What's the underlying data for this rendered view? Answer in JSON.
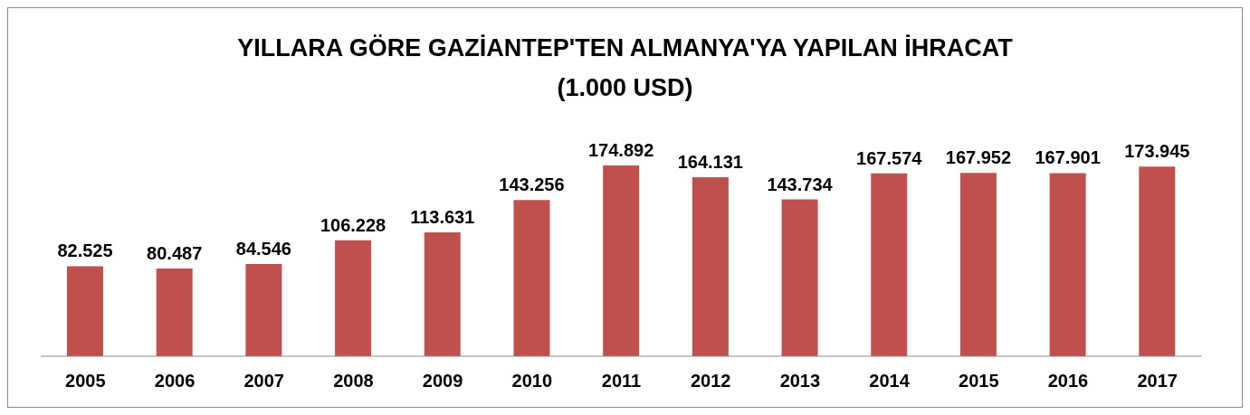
{
  "chart_data": {
    "type": "bar",
    "title": "YILLARA GÖRE GAZİANTEP'TEN ALMANYA'YA YAPILAN İHRACAT\n(1.000 USD)",
    "categories": [
      "2005",
      "2006",
      "2007",
      "2008",
      "2009",
      "2010",
      "2011",
      "2012",
      "2013",
      "2014",
      "2015",
      "2016",
      "2017"
    ],
    "values": [
      82525,
      80487,
      84546,
      106228,
      113631,
      143256,
      174892,
      164131,
      143734,
      167574,
      167952,
      167901,
      173945
    ],
    "value_labels": [
      "82.525",
      "80.487",
      "84.546",
      "106.228",
      "113.631",
      "143.256",
      "174.892",
      "164.131",
      "143.734",
      "167.574",
      "167.952",
      "167.901",
      "173.945"
    ],
    "color": "#c0504d",
    "grid": false,
    "legend": false
  }
}
